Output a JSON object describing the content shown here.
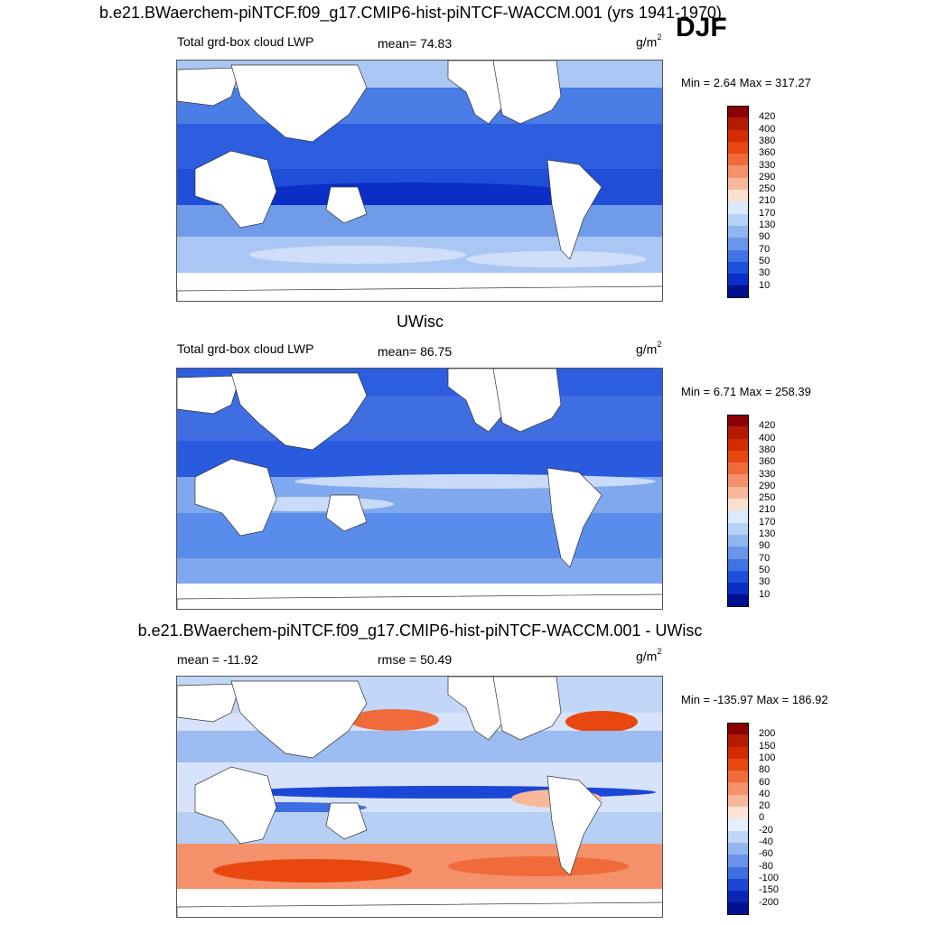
{
  "header": {
    "title": "b.e21.BWaerchem-piNTCF.f09_g17.CMIP6-hist-piNTCF-WACCM.001 (yrs 1941-1970)",
    "season": "DJF"
  },
  "panels": [
    {
      "id": "panel-1",
      "field_label": "Total grd-box cloud LWP",
      "stat_label": "mean=  74.83",
      "unit_base": "g/m",
      "unit_sup": "2",
      "minmax": "Min =   2.64 Max = 317.27",
      "colorbar_labels": [
        "420",
        "400",
        "380",
        "360",
        "330",
        "290",
        "250",
        "210",
        "170",
        "130",
        "90",
        "70",
        "50",
        "30",
        "10"
      ],
      "colorbar_colors": [
        "#8b0000",
        "#b31a00",
        "#d42c00",
        "#e8480f",
        "#f06a3a",
        "#f4916a",
        "#f7b89a",
        "#fae0cf",
        "#dbe9fb",
        "#b7d2f7",
        "#8fb6f0",
        "#6996ea",
        "#4273e4",
        "#1f50dc",
        "#0a2ec6",
        "#00108f"
      ]
    },
    {
      "id": "panel-2",
      "model_title": "UWisc",
      "field_label": "Total grd-box cloud LWP",
      "stat_label": "mean=  86.75",
      "unit_base": "g/m",
      "unit_sup": "2",
      "minmax": "Min =   6.71 Max = 258.39",
      "colorbar_labels": [
        "420",
        "400",
        "380",
        "360",
        "330",
        "290",
        "250",
        "210",
        "170",
        "130",
        "90",
        "70",
        "50",
        "30",
        "10"
      ],
      "colorbar_colors": [
        "#8b0000",
        "#b31a00",
        "#d42c00",
        "#e8480f",
        "#f06a3a",
        "#f4916a",
        "#f7b89a",
        "#fae0cf",
        "#dbe9fb",
        "#b7d2f7",
        "#8fb6f0",
        "#6996ea",
        "#4273e4",
        "#1f50dc",
        "#0a2ec6",
        "#00108f"
      ]
    },
    {
      "id": "panel-3",
      "diff_title": "b.e21.BWaerchem-piNTCF.f09_g17.CMIP6-hist-piNTCF-WACCM.001 - UWisc",
      "field_label": "mean = -11.92",
      "stat_label": "rmse =  50.49",
      "unit_base": "g/m",
      "unit_sup": "2",
      "minmax": "Min = -135.97 Max = 186.92",
      "colorbar_labels": [
        "200",
        "150",
        "100",
        "80",
        "60",
        "40",
        "20",
        "0",
        "-20",
        "-40",
        "-60",
        "-80",
        "-100",
        "-150",
        "-200"
      ],
      "colorbar_colors": [
        "#8b0000",
        "#b31a00",
        "#d42c00",
        "#e8480f",
        "#f06a3a",
        "#f4916a",
        "#f7b89a",
        "#fbe3d6",
        "#e6eefc",
        "#c2d6f7",
        "#94b6f0",
        "#6a92ea",
        "#3f6de2",
        "#1c46d6",
        "#0a26b8",
        "#00108f"
      ]
    }
  ]
}
